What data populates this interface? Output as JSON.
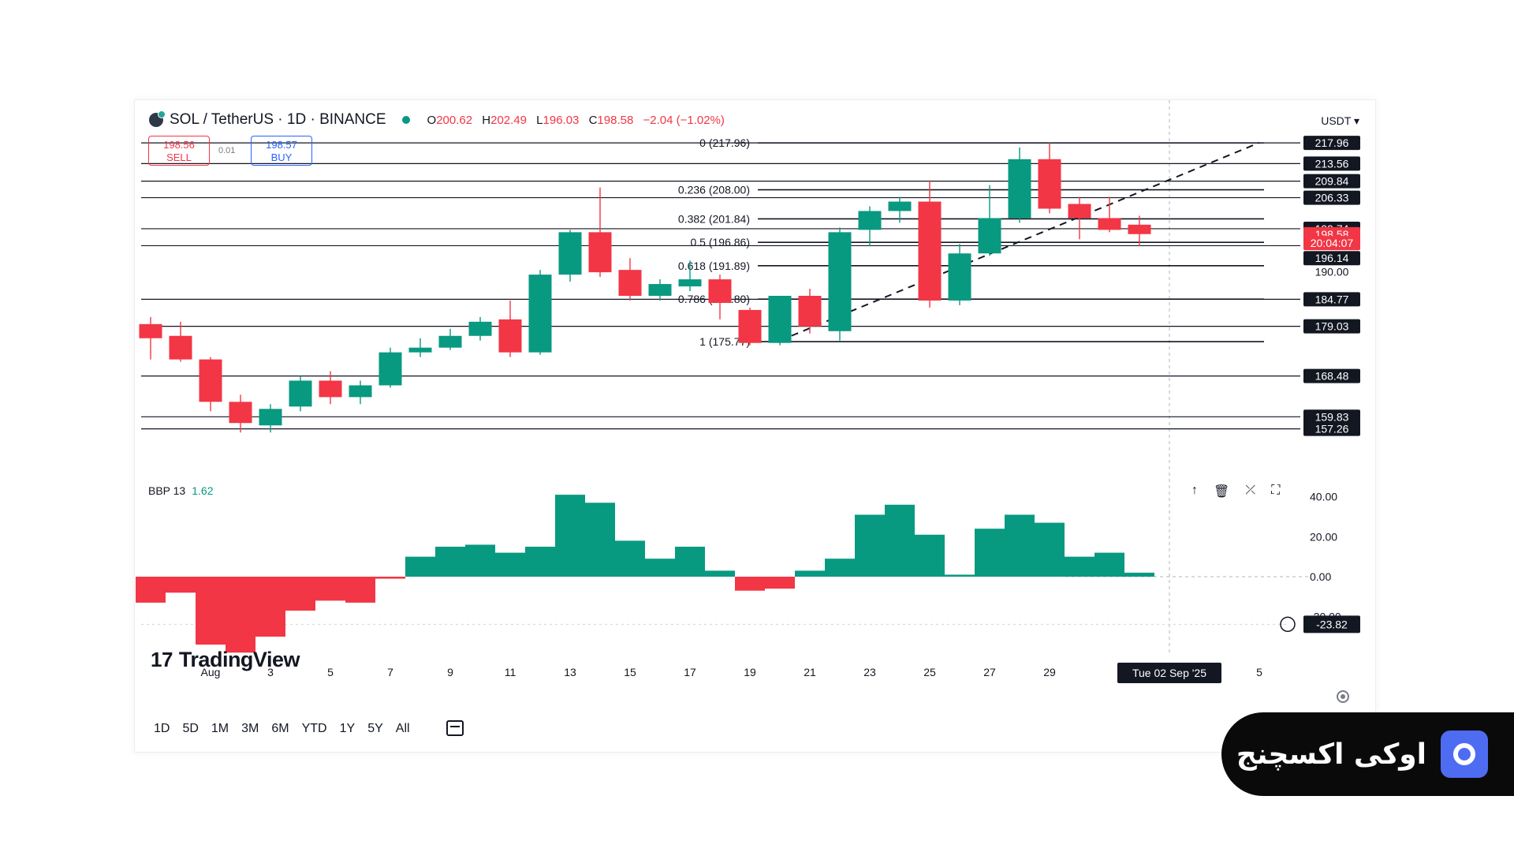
{
  "header": {
    "symbol": "SOL / TetherUS · 1D · BINANCE",
    "open_label": "O",
    "open": "200.62",
    "high_label": "H",
    "high": "202.49",
    "low_label": "L",
    "low": "196.03",
    "close_label": "C",
    "close": "198.58",
    "change": "−2.04 (−1.02%)",
    "currency": "USDT"
  },
  "trade": {
    "sell_price": "198.56",
    "sell_label": "SELL",
    "spread": "0.01",
    "buy_price": "198.57",
    "buy_label": "BUY"
  },
  "indicator": {
    "name": "BBP 13",
    "value": "1.62"
  },
  "pane_tools": [
    "arrow-up-icon",
    "trash-icon",
    "collapse-icon",
    "maximize-icon"
  ],
  "periods": [
    "1D",
    "5D",
    "1M",
    "3M",
    "6M",
    "YTD",
    "1Y",
    "5Y",
    "All"
  ],
  "logo_text": "TradingView",
  "brand": {
    "text": "اوکی اکسچنج"
  },
  "colors": {
    "up": "#089981",
    "down": "#f23645",
    "dark": "#131722"
  },
  "chart_data": {
    "type": "candlestick",
    "ylim": [
      150,
      222
    ],
    "candles": [
      {
        "date": "2025-07-30",
        "o": 179.5,
        "h": 181,
        "l": 172,
        "c": 176.5
      },
      {
        "date": "2025-07-31",
        "o": 177,
        "h": 180,
        "l": 171.5,
        "c": 172
      },
      {
        "date": "2025-08-01",
        "o": 172,
        "h": 172.5,
        "l": 161,
        "c": 163
      },
      {
        "date": "2025-08-02",
        "o": 163,
        "h": 164.5,
        "l": 156.5,
        "c": 158.5
      },
      {
        "date": "2025-08-03",
        "o": 158,
        "h": 162.5,
        "l": 156.5,
        "c": 161.5
      },
      {
        "date": "2025-08-04",
        "o": 162,
        "h": 168.5,
        "l": 161,
        "c": 167.5
      },
      {
        "date": "2025-08-05",
        "o": 167.5,
        "h": 169.5,
        "l": 162.5,
        "c": 164
      },
      {
        "date": "2025-08-06",
        "o": 164,
        "h": 167.5,
        "l": 162.5,
        "c": 166.5
      },
      {
        "date": "2025-08-07",
        "o": 166.5,
        "h": 174.5,
        "l": 166,
        "c": 173.5
      },
      {
        "date": "2025-08-08",
        "o": 173.5,
        "h": 176.5,
        "l": 172.5,
        "c": 174.5
      },
      {
        "date": "2025-08-09",
        "o": 174.5,
        "h": 178.5,
        "l": 174,
        "c": 177
      },
      {
        "date": "2025-08-10",
        "o": 177,
        "h": 181,
        "l": 176,
        "c": 180
      },
      {
        "date": "2025-08-11",
        "o": 180.5,
        "h": 184.5,
        "l": 172.5,
        "c": 173.5
      },
      {
        "date": "2025-08-12",
        "o": 173.5,
        "h": 191,
        "l": 173,
        "c": 190
      },
      {
        "date": "2025-08-13",
        "o": 190,
        "h": 199.5,
        "l": 188.5,
        "c": 199
      },
      {
        "date": "2025-08-14",
        "o": 199,
        "h": 208.5,
        "l": 189.5,
        "c": 190.5
      },
      {
        "date": "2025-08-15",
        "o": 191,
        "h": 193.5,
        "l": 184.5,
        "c": 185.5
      },
      {
        "date": "2025-08-16",
        "o": 185.5,
        "h": 189,
        "l": 184.5,
        "c": 188
      },
      {
        "date": "2025-08-17",
        "o": 187.5,
        "h": 193,
        "l": 186.5,
        "c": 189
      },
      {
        "date": "2025-08-18",
        "o": 189,
        "h": 190,
        "l": 180.5,
        "c": 184
      },
      {
        "date": "2025-08-19",
        "o": 182.5,
        "h": 183,
        "l": 175,
        "c": 175.5
      },
      {
        "date": "2025-08-20",
        "o": 175.5,
        "h": 185.5,
        "l": 175,
        "c": 185.5
      },
      {
        "date": "2025-08-21",
        "o": 185.5,
        "h": 187,
        "l": 177.5,
        "c": 179
      },
      {
        "date": "2025-08-22",
        "o": 178,
        "h": 200,
        "l": 176,
        "c": 199
      },
      {
        "date": "2025-08-23",
        "o": 199.5,
        "h": 204.5,
        "l": 196,
        "c": 203.5
      },
      {
        "date": "2025-08-24",
        "o": 203.5,
        "h": 206.5,
        "l": 201,
        "c": 205.5
      },
      {
        "date": "2025-08-25",
        "o": 205.5,
        "h": 210,
        "l": 183,
        "c": 184.5
      },
      {
        "date": "2025-08-26",
        "o": 184.5,
        "h": 196.5,
        "l": 183.5,
        "c": 194.5
      },
      {
        "date": "2025-08-27",
        "o": 194.5,
        "h": 209,
        "l": 194,
        "c": 202
      },
      {
        "date": "2025-08-28",
        "o": 202,
        "h": 217,
        "l": 201,
        "c": 214.5
      },
      {
        "date": "2025-08-29",
        "o": 214.5,
        "h": 218,
        "l": 203,
        "c": 204
      },
      {
        "date": "2025-08-30",
        "o": 205,
        "h": 206.5,
        "l": 197.5,
        "c": 202
      },
      {
        "date": "2025-08-31",
        "o": 202,
        "h": 206.5,
        "l": 199,
        "c": 199.5
      },
      {
        "date": "2025-09-01",
        "o": 200.6,
        "h": 202.5,
        "l": 196,
        "c": 198.6
      }
    ],
    "bbp": [
      -13,
      -8,
      -34,
      -38,
      -30,
      -17,
      -12,
      -13,
      -1,
      10,
      15,
      16,
      12,
      15,
      41,
      37,
      18,
      9,
      15,
      3,
      -7,
      -6,
      3,
      9,
      31,
      36,
      21,
      1,
      24,
      31,
      27,
      10,
      12,
      2
    ],
    "bbp_ylim": [
      -30,
      45
    ],
    "price_labels": [
      {
        "value": "217.96",
        "price": 217.96,
        "bg": "#131722"
      },
      {
        "value": "213.56",
        "price": 213.56,
        "bg": "#131722"
      },
      {
        "value": "209.84",
        "price": 209.84,
        "bg": "#131722"
      },
      {
        "value": "206.33",
        "price": 206.33,
        "bg": "#131722"
      },
      {
        "value": "199.74",
        "price": 199.74,
        "bg": "#131722"
      },
      {
        "value": "198.58",
        "price": 198.58,
        "bg": "#f23645"
      },
      {
        "value": "20:04:07",
        "price": 196.7,
        "bg": "#f23645"
      },
      {
        "value": "196.14",
        "price": 193.5,
        "bg": "#131722"
      },
      {
        "value": "190.00",
        "price": 190.6,
        "bg": "none"
      },
      {
        "value": "184.77",
        "price": 184.77,
        "bg": "#131722"
      },
      {
        "value": "179.03",
        "price": 179.03,
        "bg": "#131722"
      },
      {
        "value": "168.48",
        "price": 168.48,
        "bg": "#131722"
      },
      {
        "value": "159.83",
        "price": 159.83,
        "bg": "#131722"
      },
      {
        "value": "157.26",
        "price": 157.26,
        "bg": "#131722"
      }
    ],
    "horizontal_lines": [
      217.96,
      213.56,
      209.84,
      206.33,
      199.74,
      196.14,
      184.77,
      179.03,
      168.48,
      159.83,
      157.26
    ],
    "fib_levels": [
      {
        "label": "0 (217.96)",
        "price": 217.96
      },
      {
        "label": "0.236 (208.00)",
        "price": 208.0
      },
      {
        "label": "0.382 (201.84)",
        "price": 201.84
      },
      {
        "label": "0.5 (196.86)",
        "price": 196.86
      },
      {
        "label": "0.618 (191.89)",
        "price": 191.89
      },
      {
        "label": "0.786 (184.80)",
        "price": 184.8
      },
      {
        "label": "1 (175.77)",
        "price": 175.77
      }
    ],
    "trend_line": {
      "from": {
        "date": "2025-08-20",
        "price": 176
      },
      "to": {
        "date": "2025-09-05",
        "price": 218
      }
    },
    "bbp_axis": [
      {
        "label": "40.00",
        "value": 40
      },
      {
        "label": "20.00",
        "value": 20
      },
      {
        "label": "0.00",
        "value": 0
      },
      {
        "label": "-20.00",
        "value": -20
      }
    ],
    "bbp_marker": "-23.82",
    "x_ticks": [
      {
        "label": "Aug",
        "date": "2025-08-01"
      },
      {
        "label": "3",
        "date": "2025-08-03"
      },
      {
        "label": "5",
        "date": "2025-08-05"
      },
      {
        "label": "7",
        "date": "2025-08-07"
      },
      {
        "label": "9",
        "date": "2025-08-09"
      },
      {
        "label": "11",
        "date": "2025-08-11"
      },
      {
        "label": "13",
        "date": "2025-08-13"
      },
      {
        "label": "15",
        "date": "2025-08-15"
      },
      {
        "label": "17",
        "date": "2025-08-17"
      },
      {
        "label": "19",
        "date": "2025-08-19"
      },
      {
        "label": "21",
        "date": "2025-08-21"
      },
      {
        "label": "23",
        "date": "2025-08-23"
      },
      {
        "label": "25",
        "date": "2025-08-25"
      },
      {
        "label": "27",
        "date": "2025-08-27"
      },
      {
        "label": "29",
        "date": "2025-08-29"
      },
      {
        "label": "5",
        "date": "2025-09-05"
      }
    ],
    "crosshair": {
      "label": "Tue 02 Sep '25",
      "date": "2025-09-02"
    }
  }
}
